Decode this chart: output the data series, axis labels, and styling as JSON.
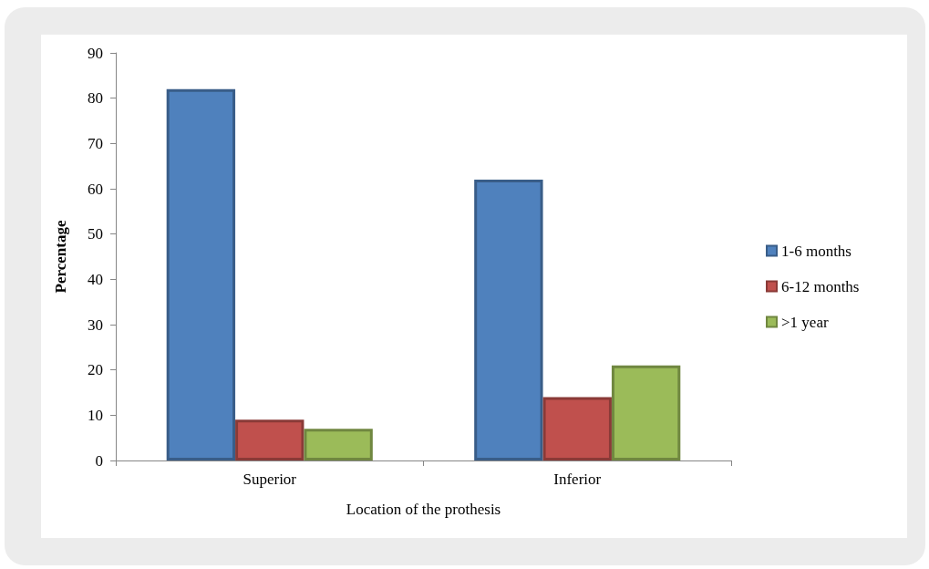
{
  "chart_data": {
    "type": "bar",
    "xlabel": "Location of the prothesis",
    "ylabel": "Percentage",
    "categories": [
      "Superior",
      "Inferior"
    ],
    "series": [
      {
        "name": "1-6 months",
        "color": "#4f81bd",
        "values": [
          82,
          62
        ]
      },
      {
        "name": "6-12 months",
        "color": "#c0504d",
        "values": [
          9,
          14
        ]
      },
      {
        "name": ">1 year",
        "color": "#9bbb59",
        "values": [
          7,
          21
        ]
      }
    ],
    "ylim": [
      0,
      90
    ],
    "yticks": [
      0,
      10,
      20,
      30,
      40,
      50,
      60,
      70,
      80,
      90
    ],
    "grid": false,
    "legend": "right"
  }
}
